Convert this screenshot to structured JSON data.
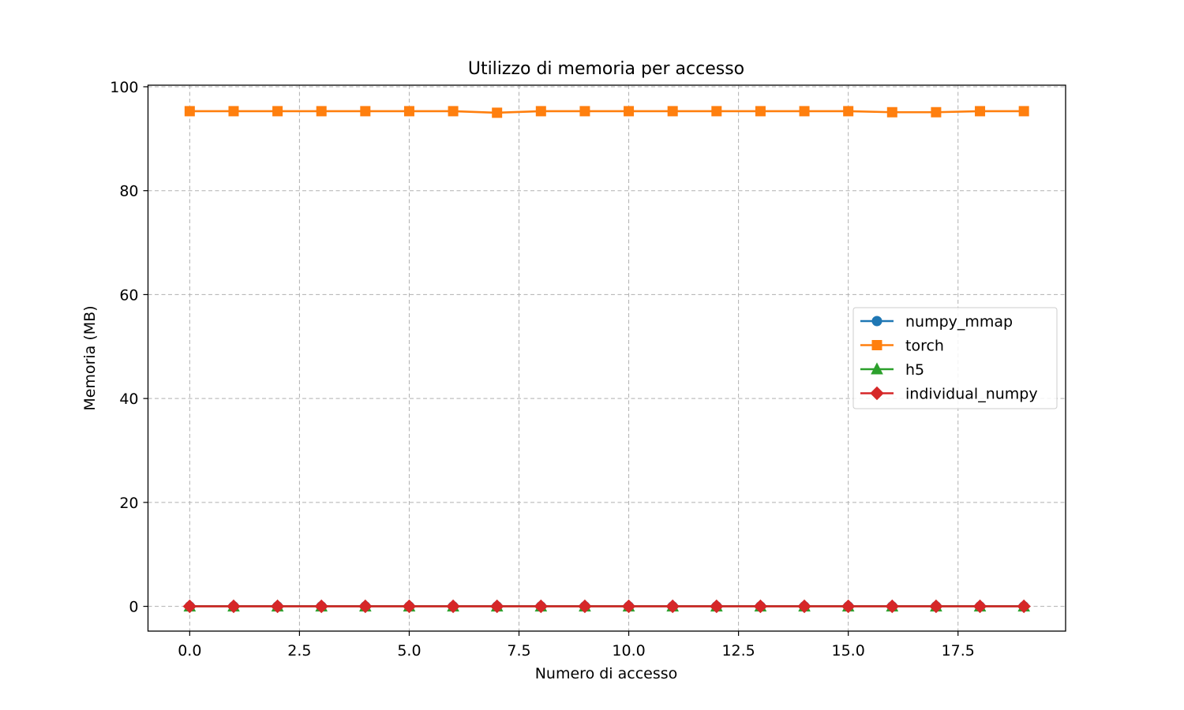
{
  "chart_data": {
    "type": "line",
    "title": "Utilizzo di memoria per accesso",
    "xlabel": "Numero di accesso",
    "ylabel": "Memoria (MB)",
    "xlim": [
      -0.95,
      19.95
    ],
    "ylim": [
      -4.77,
      100.3
    ],
    "xticks": [
      0.0,
      2.5,
      5.0,
      7.5,
      10.0,
      12.5,
      15.0,
      17.5
    ],
    "xtick_labels": [
      "0.0",
      "2.5",
      "5.0",
      "7.5",
      "10.0",
      "12.5",
      "15.0",
      "17.5"
    ],
    "yticks": [
      0,
      20,
      40,
      60,
      80,
      100
    ],
    "ytick_labels": [
      "0",
      "20",
      "40",
      "60",
      "80",
      "100"
    ],
    "grid": true,
    "legend_position": "center-right",
    "x": [
      0,
      1,
      2,
      3,
      4,
      5,
      6,
      7,
      8,
      9,
      10,
      11,
      12,
      13,
      14,
      15,
      16,
      17,
      18,
      19
    ],
    "series": [
      {
        "name": "numpy_mmap",
        "color": "#1f77b4",
        "marker": "circle",
        "values": [
          0,
          0,
          0,
          0,
          0,
          0,
          0,
          0,
          0,
          0,
          0,
          0,
          0,
          0,
          0,
          0,
          0,
          0,
          0,
          0
        ]
      },
      {
        "name": "torch",
        "color": "#ff7f0e",
        "marker": "square",
        "values": [
          95.3,
          95.3,
          95.3,
          95.3,
          95.3,
          95.3,
          95.3,
          95.0,
          95.3,
          95.3,
          95.3,
          95.3,
          95.3,
          95.3,
          95.3,
          95.3,
          95.1,
          95.1,
          95.3,
          95.3
        ]
      },
      {
        "name": "h5",
        "color": "#2ca02c",
        "marker": "triangle",
        "values": [
          0,
          0,
          0,
          0,
          0,
          0,
          0,
          0,
          0,
          0,
          0,
          0,
          0,
          0,
          0,
          0,
          0,
          0,
          0,
          0
        ]
      },
      {
        "name": "individual_numpy",
        "color": "#d62728",
        "marker": "diamond",
        "values": [
          0,
          0,
          0,
          0,
          0,
          0,
          0,
          0,
          0,
          0,
          0,
          0,
          0,
          0,
          0,
          0,
          0,
          0,
          0,
          0
        ]
      }
    ]
  }
}
